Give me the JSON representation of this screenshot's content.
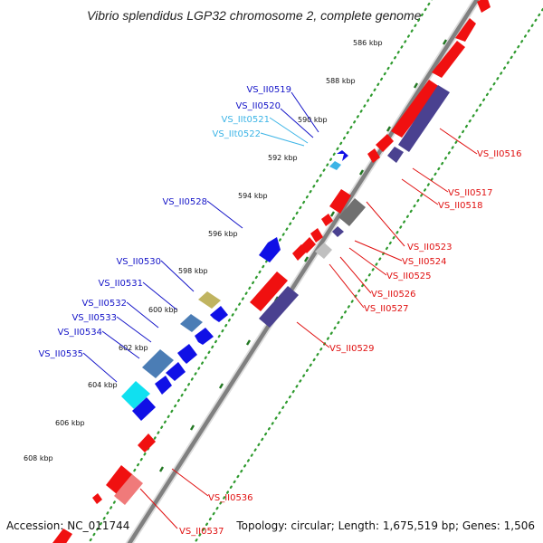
{
  "title": "Vibrio splendidus LGP32 chromosome 2, complete genome",
  "footer": {
    "accession": "Accession: NC_011744",
    "summary": "Topology: circular; Length: 1,675,519 bp; Genes: 1,506"
  },
  "colors": {
    "backbone": "#7a7a7a",
    "tick_dot": "#2e9a2e",
    "tick_major": "#227722",
    "label_blue": "#1515c8",
    "label_cyan": "#3cb4e6",
    "label_red": "#e01010",
    "gene_red": "#f01010",
    "gene_blue": "#1010e6",
    "gene_purple": "#4a4190",
    "gene_gray": "#707070",
    "gene_lightgray": "#c0c0c0",
    "gene_steel": "#4b7db5",
    "gene_olive": "#c0b460",
    "gene_cyan": "#10e0f0",
    "gene_pink": "#f07a7a"
  },
  "scale_labels": [
    "586 kbp",
    "588 kbp",
    "590 kbp",
    "592 kbp",
    "594 kbp",
    "596 kbp",
    "598 kbp",
    "600 kbp",
    "602 kbp",
    "604 kbp",
    "606 kbp",
    "608 kbp"
  ],
  "gene_labels_upper": [
    "VS_II0519",
    "VS_II0520",
    "VS_IIt0521",
    "VS_IIt0522",
    "VS_II0528",
    "VS_II0530",
    "VS_II0531",
    "VS_II0532",
    "VS_II0533",
    "VS_II0534",
    "VS_II0535"
  ],
  "gene_labels_lower": [
    "VS_II0516",
    "VS_II0517",
    "VS_II0518",
    "VS_II0523",
    "VS_II0524",
    "VS_II0525",
    "VS_II0526",
    "VS_II0527",
    "VS_II0529",
    "VS_II0536",
    "VS_II0537"
  ]
}
